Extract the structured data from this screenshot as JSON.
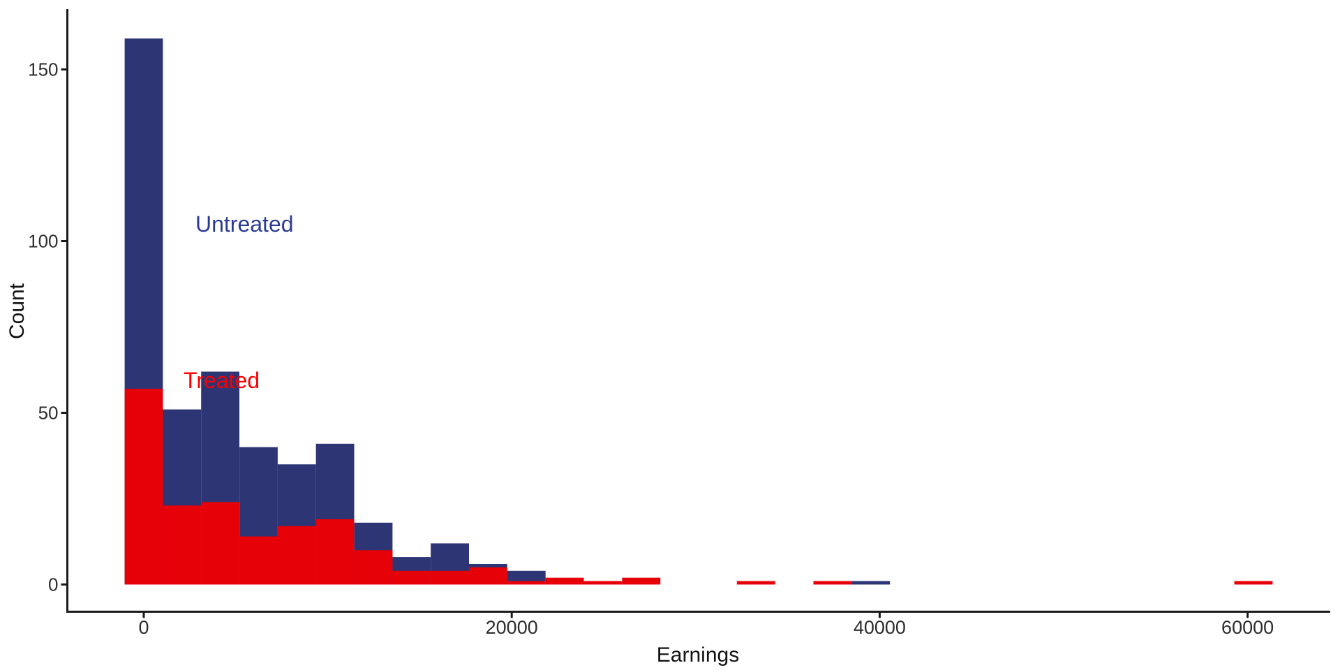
{
  "chart_data": {
    "type": "histogram",
    "title": "",
    "xlabel": "Earnings",
    "ylabel": "Count",
    "x_ticks": [
      0,
      20000,
      40000,
      60000
    ],
    "y_ticks": [
      0,
      50,
      100,
      150
    ],
    "x_range": [
      -4150,
      64480
    ],
    "y_range": [
      0,
      167
    ],
    "grid": false,
    "legend_position": "inline-text-annotations",
    "bin_width": 2080,
    "bin_centers": [
      0,
      2080,
      4160,
      6240,
      8320,
      10400,
      12480,
      14560,
      16640,
      18720,
      20800,
      22880,
      24960,
      27040,
      29120,
      31200,
      33280,
      35360,
      37440,
      39520,
      41600,
      43680,
      45760,
      47840,
      49920,
      52000,
      54080,
      56160,
      58240,
      60320
    ],
    "series": [
      {
        "name": "Untreated",
        "color": "#2e3574",
        "counts": [
          159,
          51,
          62,
          40,
          35,
          41,
          18,
          8,
          12,
          6,
          4,
          0,
          0,
          0,
          0,
          0,
          0,
          0,
          0,
          1,
          0,
          0,
          0,
          0,
          0,
          0,
          0,
          0,
          0,
          0
        ]
      },
      {
        "name": "Treated",
        "color": "#e60008",
        "counts": [
          57,
          23,
          24,
          14,
          17,
          19,
          10,
          4,
          4,
          5,
          1,
          2,
          1,
          2,
          0,
          0,
          1,
          0,
          1,
          0,
          0,
          0,
          0,
          0,
          0,
          0,
          0,
          0,
          0,
          1
        ]
      }
    ],
    "annotations": [
      {
        "text": "Untreated",
        "color": "#2b3a94"
      },
      {
        "text": "Treated",
        "color": "#fa0000"
      }
    ],
    "axis_color": "#1a1a1a",
    "tick_label_color": "#2d2d2d"
  }
}
